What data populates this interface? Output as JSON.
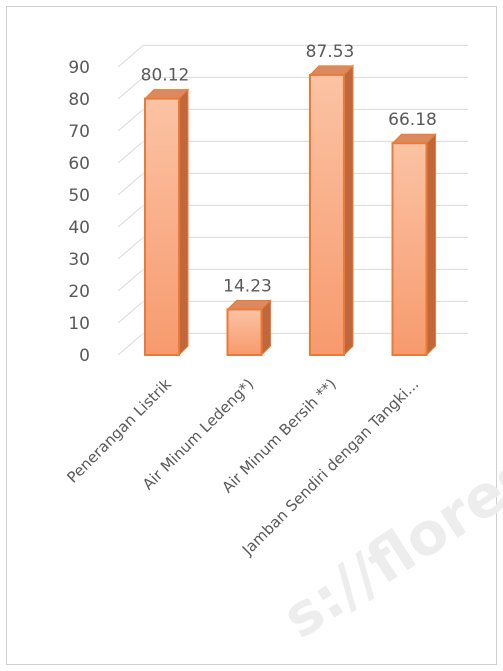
{
  "chart_data": {
    "type": "bar",
    "style": "3d-column",
    "categories": [
      "Penerangan Listrik",
      "Air Minum Ledeng*)",
      "Air Minum Bersih **)",
      "Jamban Sendiri dengan Tangki..."
    ],
    "values": [
      80.12,
      14.23,
      87.53,
      66.18
    ],
    "value_labels": [
      "80.12",
      "14.23",
      "87.53",
      "66.18"
    ],
    "yticks": [
      0,
      10,
      20,
      30,
      40,
      50,
      60,
      70,
      80,
      90
    ],
    "ylim": [
      0,
      90
    ],
    "grid": true,
    "legend": "none",
    "bar_color": "#f79a6e",
    "bar_color_light": "#fbc3a4",
    "bar_edge_color": "#ec7a36",
    "bar_side_color": "#c0683c",
    "bar_top_color": "#d98a60"
  },
  "watermark": "s://flores"
}
